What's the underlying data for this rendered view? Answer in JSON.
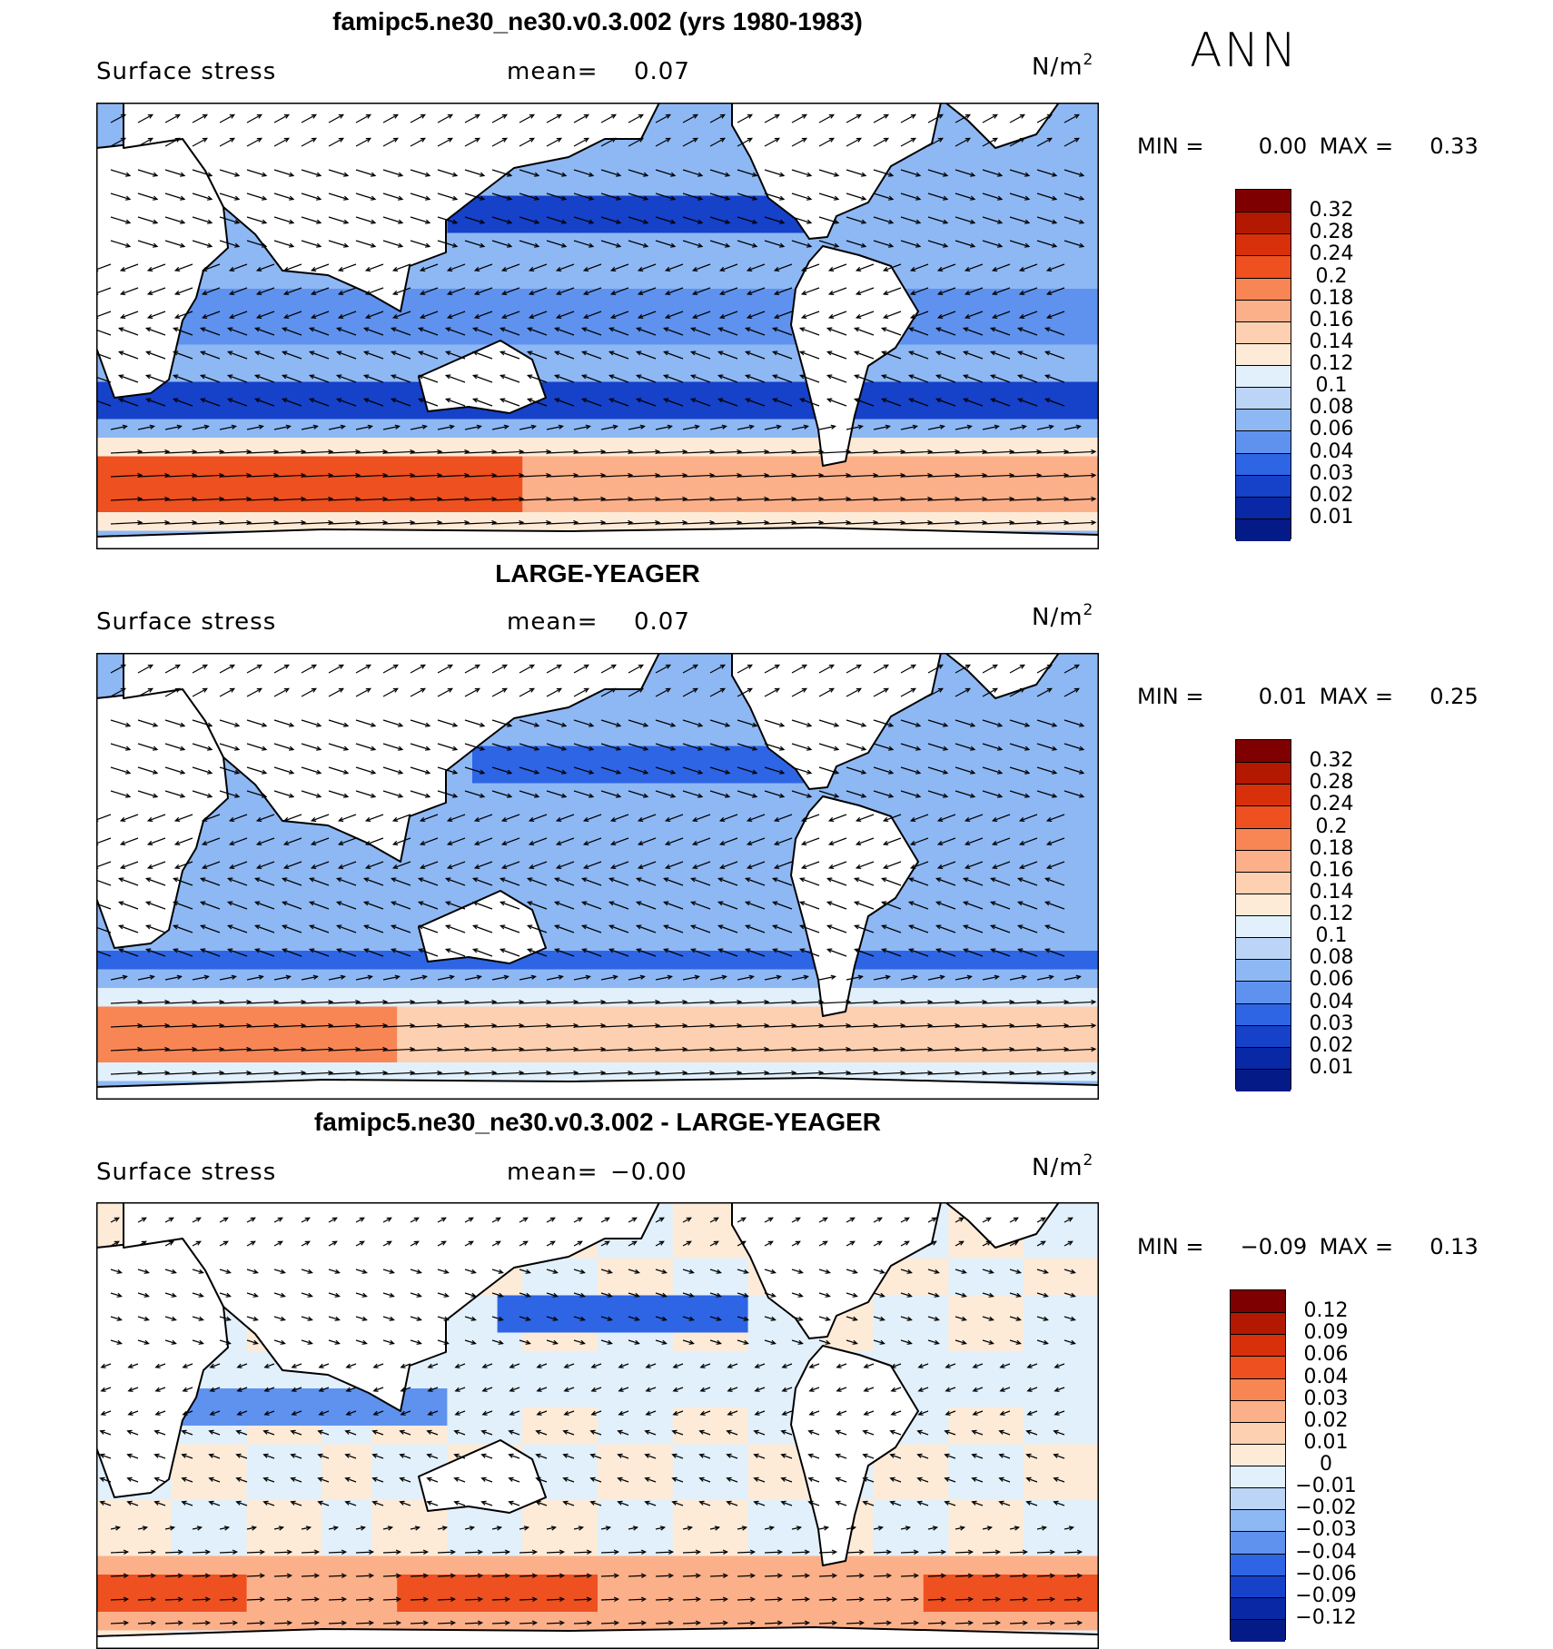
{
  "season": "ANN",
  "colorbars": {
    "abs": {
      "ticks": [
        "0.32",
        "0.28",
        "0.24",
        "0.2",
        "0.18",
        "0.16",
        "0.14",
        "0.12",
        "0.1",
        "0.08",
        "0.06",
        "0.04",
        "0.03",
        "0.02",
        "0.01"
      ],
      "colors": [
        "#7f0000",
        "#b31800",
        "#d7300a",
        "#ee5020",
        "#f88655",
        "#fbb08a",
        "#fdd0b2",
        "#fdebd8",
        "#e1f0fb",
        "#bcd5f6",
        "#8eb8f4",
        "#5f92ee",
        "#2e65e5",
        "#1641c9",
        "#0828a5",
        "#041a87"
      ]
    },
    "diff": {
      "ticks": [
        "0.12",
        "0.09",
        "0.06",
        "0.04",
        "0.03",
        "0.02",
        "0.01",
        "0",
        "−0.01",
        "−0.02",
        "−0.03",
        "−0.04",
        "−0.06",
        "−0.09",
        "−0.12"
      ],
      "colors": [
        "#7f0000",
        "#b31800",
        "#d7300a",
        "#ee5020",
        "#f88655",
        "#fbb08a",
        "#fdd0b2",
        "#fdebd8",
        "#e1f0fb",
        "#bcd5f6",
        "#8eb8f4",
        "#5f92ee",
        "#2e65e5",
        "#1641c9",
        "#0828a5",
        "#041a87"
      ]
    }
  },
  "panels": [
    {
      "title": "famipc5.ne30_ne30.v0.3.002 (yrs 1980-1983)",
      "variable": "Surface stress",
      "mean_label": "mean=",
      "mean_value": "0.07",
      "unit_base": "N/m",
      "unit_exp": "2",
      "min_label": "MIN =",
      "min_value": "0.00",
      "max_label": "MAX =",
      "max_value": "0.33",
      "colorbar": "abs"
    },
    {
      "title": "LARGE-YEAGER",
      "variable": "Surface stress",
      "mean_label": "mean=",
      "mean_value": "0.07",
      "unit_base": "N/m",
      "unit_exp": "2",
      "min_label": "MIN =",
      "min_value": "0.01",
      "max_label": "MAX =",
      "max_value": "0.25",
      "colorbar": "abs"
    },
    {
      "title": "famipc5.ne30_ne30.v0.3.002 - LARGE-YEAGER",
      "variable": "Surface stress",
      "mean_label": "mean=",
      "mean_value": "−0.00",
      "unit_base": "N/m",
      "unit_exp": "2",
      "min_label": "MIN =",
      "min_value": "−0.09",
      "max_label": "MAX =",
      "max_value": "0.13",
      "colorbar": "diff"
    }
  ],
  "chart_data": [
    {
      "type": "heatmap",
      "title": "famipc5.ne30_ne30.v0.3.002 (yrs 1980-1983)",
      "variable": "Surface stress",
      "units": "N/m2",
      "season": "ANN",
      "mean": 0.07,
      "min": 0.0,
      "max": 0.33,
      "contour_levels": [
        0.01,
        0.02,
        0.03,
        0.04,
        0.06,
        0.08,
        0.1,
        0.12,
        0.14,
        0.16,
        0.18,
        0.2,
        0.24,
        0.28,
        0.32
      ],
      "overlay": "wind stress vectors",
      "projection": "global cylindrical equidistant, Pacific-centered"
    },
    {
      "type": "heatmap",
      "title": "LARGE-YEAGER",
      "variable": "Surface stress",
      "units": "N/m2",
      "season": "ANN",
      "mean": 0.07,
      "min": 0.01,
      "max": 0.25,
      "contour_levels": [
        0.01,
        0.02,
        0.03,
        0.04,
        0.06,
        0.08,
        0.1,
        0.12,
        0.14,
        0.16,
        0.18,
        0.2,
        0.24,
        0.28,
        0.32
      ],
      "overlay": "wind stress vectors",
      "projection": "global cylindrical equidistant, Pacific-centered"
    },
    {
      "type": "heatmap",
      "title": "famipc5.ne30_ne30.v0.3.002 - LARGE-YEAGER",
      "variable": "Surface stress",
      "units": "N/m2",
      "season": "ANN",
      "mean": -0.0,
      "min": -0.09,
      "max": 0.13,
      "contour_levels": [
        -0.12,
        -0.09,
        -0.06,
        -0.04,
        -0.03,
        -0.02,
        -0.01,
        0,
        0.01,
        0.02,
        0.03,
        0.04,
        0.06,
        0.09,
        0.12
      ],
      "overlay": "wind stress difference vectors",
      "projection": "global cylindrical equidistant, Pacific-centered"
    }
  ]
}
